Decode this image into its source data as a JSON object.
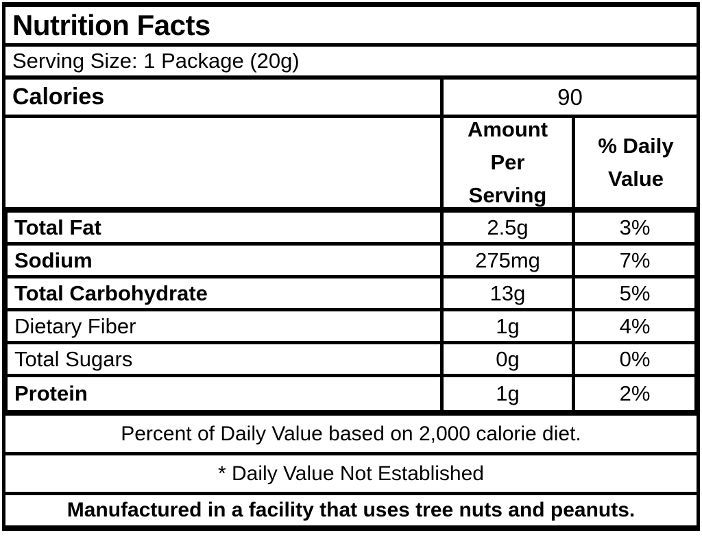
{
  "label": {
    "title": "Nutrition Facts",
    "serving_size": "Serving Size: 1 Package (20g)",
    "calories": {
      "label": "Calories",
      "value": "90"
    },
    "column_headers": {
      "amount": "Amount Per Serving",
      "daily_value": "% Daily Value"
    },
    "nutrients": [
      {
        "name": "Total Fat",
        "amount": "2.5g",
        "daily_value": "3%",
        "bold": true
      },
      {
        "name": "Sodium",
        "amount": "275mg",
        "daily_value": "7%",
        "bold": true
      },
      {
        "name": "Total Carbohydrate",
        "amount": "13g",
        "daily_value": "5%",
        "bold": true
      },
      {
        "name": "Dietary Fiber",
        "amount": "1g",
        "daily_value": "4%",
        "bold": false
      },
      {
        "name": "Total Sugars",
        "amount": "0g",
        "daily_value": "0%",
        "bold": false
      },
      {
        "name": "Protein",
        "amount": "1g",
        "daily_value": "2%",
        "bold": true
      }
    ],
    "footnotes": [
      {
        "text": "Percent of Daily Value based on 2,000 calorie diet.",
        "bold": false
      },
      {
        "text": "* Daily Value Not Established",
        "bold": false
      },
      {
        "text": "Manufactured in a facility that uses tree nuts and peanuts.",
        "bold": true
      }
    ],
    "colors": {
      "border": "#000000",
      "background": "#ffffff",
      "text": "#000000"
    }
  }
}
